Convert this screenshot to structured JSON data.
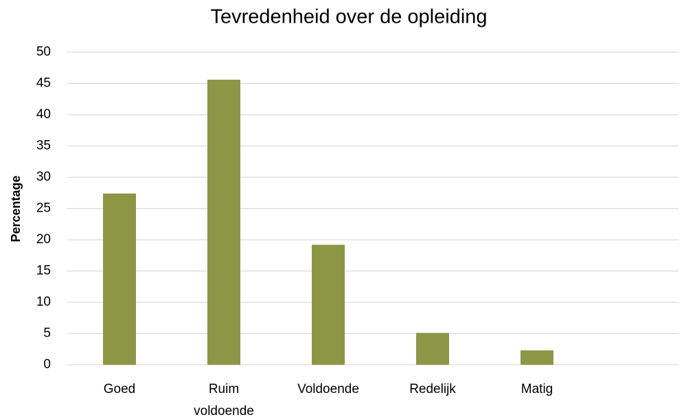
{
  "chart_data": {
    "type": "bar",
    "title": "Tevredenheid over de opleiding",
    "y_label": "Percentage",
    "categories": [
      "Goed",
      "Ruim voldoende",
      "Voldoende",
      "Redelijk",
      "Matig"
    ],
    "values": [
      27.4,
      45.6,
      19.2,
      5.1,
      2.3
    ],
    "color": "#8c9645",
    "ylim": [
      0,
      50
    ],
    "yticks": [
      0,
      5,
      10,
      15,
      20,
      25,
      30,
      35,
      40,
      45,
      50
    ],
    "grid": true
  }
}
